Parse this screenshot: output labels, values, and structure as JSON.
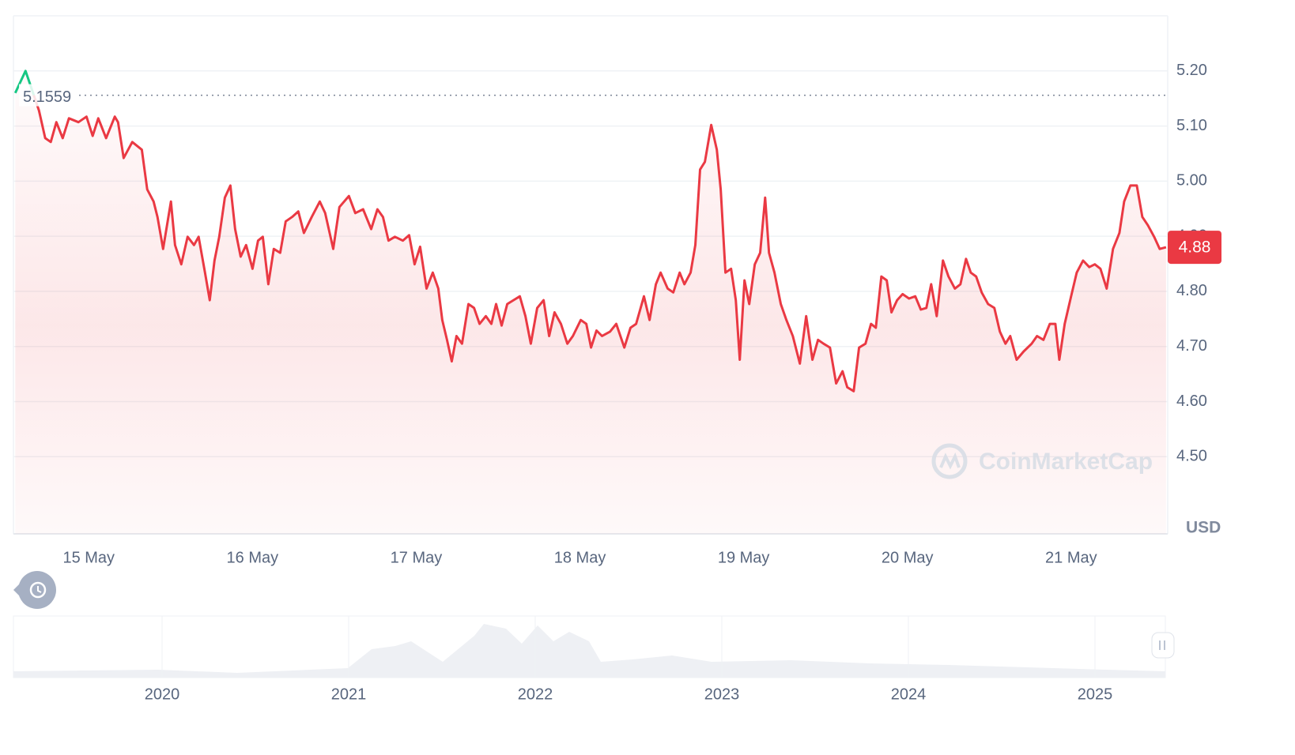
{
  "chart_data": {
    "type": "line",
    "color": "#ea3943",
    "color_above": "#16c784",
    "reference": 5.1559,
    "current_price": 4.88,
    "unit": "USD",
    "watermark": "CoinMarketCap",
    "grid": true,
    "xlim": [
      14.54,
      21.59
    ],
    "xticks": [
      {
        "value": 15,
        "label": "15 May"
      },
      {
        "value": 16,
        "label": "16 May"
      },
      {
        "value": 17,
        "label": "17 May"
      },
      {
        "value": 18,
        "label": "18 May"
      },
      {
        "value": 19,
        "label": "19 May"
      },
      {
        "value": 20,
        "label": "20 May"
      },
      {
        "value": 21,
        "label": "21 May"
      }
    ],
    "ylim": [
      4.36,
      5.3
    ],
    "yticks": [
      {
        "value": 4.5,
        "label": "4.50"
      },
      {
        "value": 4.6,
        "label": "4.60"
      },
      {
        "value": 4.7,
        "label": "4.70"
      },
      {
        "value": 4.8,
        "label": "4.80"
      },
      {
        "value": 4.9,
        "label": "4.90"
      },
      {
        "value": 5.0,
        "label": "5.00"
      },
      {
        "value": 5.1,
        "label": "5.10"
      },
      {
        "value": 5.2,
        "label": "5.20"
      }
    ],
    "x": [
      14.551,
      14.614,
      14.647,
      14.696,
      14.734,
      14.768,
      14.802,
      14.841,
      14.879,
      14.937,
      14.986,
      15.024,
      15.058,
      15.106,
      15.159,
      15.179,
      15.213,
      15.266,
      15.324,
      15.357,
      15.396,
      15.42,
      15.454,
      15.502,
      15.527,
      15.565,
      15.604,
      15.643,
      15.671,
      15.71,
      15.739,
      15.768,
      15.797,
      15.831,
      15.865,
      15.894,
      15.928,
      15.961,
      16.0,
      16.034,
      16.063,
      16.097,
      16.13,
      16.169,
      16.203,
      16.242,
      16.28,
      16.314,
      16.362,
      16.411,
      16.444,
      16.493,
      16.531,
      16.589,
      16.628,
      16.676,
      16.725,
      16.763,
      16.797,
      16.831,
      16.87,
      16.918,
      16.957,
      16.99,
      17.024,
      17.063,
      17.101,
      17.135,
      17.159,
      17.188,
      17.217,
      17.246,
      17.28,
      17.319,
      17.353,
      17.387,
      17.425,
      17.459,
      17.488,
      17.522,
      17.556,
      17.594,
      17.633,
      17.667,
      17.7,
      17.739,
      17.778,
      17.812,
      17.845,
      17.884,
      17.923,
      17.957,
      18.005,
      18.039,
      18.068,
      18.101,
      18.135,
      18.184,
      18.222,
      18.271,
      18.309,
      18.343,
      18.391,
      18.425,
      18.464,
      18.493,
      18.536,
      18.57,
      18.609,
      18.638,
      18.676,
      18.705,
      18.734,
      18.763,
      18.802,
      18.836,
      18.86,
      18.889,
      18.923,
      18.952,
      18.976,
      19.005,
      19.034,
      19.068,
      19.101,
      19.131,
      19.155,
      19.188,
      19.227,
      19.261,
      19.3,
      19.343,
      19.382,
      19.42,
      19.454,
      19.488,
      19.527,
      19.565,
      19.604,
      19.633,
      19.672,
      19.705,
      19.744,
      19.778,
      19.807,
      19.841,
      19.874,
      19.903,
      19.937,
      19.971,
      20.01,
      20.048,
      20.082,
      20.116,
      20.145,
      20.179,
      20.217,
      20.251,
      20.29,
      20.324,
      20.358,
      20.387,
      20.42,
      20.454,
      20.493,
      20.531,
      20.565,
      20.599,
      20.628,
      20.667,
      20.71,
      20.759,
      20.792,
      20.831,
      20.87,
      20.904,
      20.928,
      20.961,
      21.0,
      21.034,
      21.073,
      21.111,
      21.145,
      21.179,
      21.217,
      21.256,
      21.295,
      21.324,
      21.362,
      21.401,
      21.435,
      21.469,
      21.507,
      21.541,
      21.58
    ],
    "values": [
      5.16,
      5.2,
      5.171,
      5.128,
      5.078,
      5.071,
      5.107,
      5.078,
      5.114,
      5.107,
      5.117,
      5.082,
      5.114,
      5.078,
      5.117,
      5.107,
      5.042,
      5.071,
      5.057,
      4.985,
      4.963,
      4.935,
      4.877,
      4.963,
      4.884,
      4.849,
      4.899,
      4.884,
      4.899,
      4.834,
      4.784,
      4.856,
      4.899,
      4.97,
      4.992,
      4.913,
      4.863,
      4.884,
      4.841,
      4.892,
      4.899,
      4.813,
      4.877,
      4.87,
      4.927,
      4.935,
      4.945,
      4.906,
      4.935,
      4.963,
      4.942,
      4.877,
      4.953,
      4.973,
      4.942,
      4.949,
      4.913,
      4.949,
      4.935,
      4.892,
      4.899,
      4.892,
      4.902,
      4.849,
      4.881,
      4.805,
      4.834,
      4.805,
      4.748,
      4.712,
      4.673,
      4.719,
      4.705,
      4.777,
      4.77,
      4.741,
      4.755,
      4.741,
      4.777,
      4.738,
      4.777,
      4.784,
      4.791,
      4.755,
      4.705,
      4.77,
      4.784,
      4.719,
      4.762,
      4.741,
      4.705,
      4.719,
      4.748,
      4.741,
      4.698,
      4.729,
      4.719,
      4.727,
      4.741,
      4.698,
      4.734,
      4.741,
      4.791,
      4.748,
      4.813,
      4.834,
      4.805,
      4.798,
      4.834,
      4.813,
      4.834,
      4.884,
      5.021,
      5.035,
      5.102,
      5.057,
      4.985,
      4.834,
      4.841,
      4.784,
      4.676,
      4.82,
      4.777,
      4.849,
      4.87,
      4.97,
      4.87,
      4.834,
      4.777,
      4.748,
      4.719,
      4.669,
      4.755,
      4.676,
      4.712,
      4.705,
      4.698,
      4.633,
      4.655,
      4.626,
      4.619,
      4.698,
      4.705,
      4.741,
      4.734,
      4.827,
      4.82,
      4.762,
      4.784,
      4.795,
      4.787,
      4.791,
      4.767,
      4.77,
      4.813,
      4.755,
      4.856,
      4.827,
      4.805,
      4.813,
      4.859,
      4.834,
      4.827,
      4.798,
      4.777,
      4.77,
      4.727,
      4.705,
      4.719,
      4.676,
      4.691,
      4.705,
      4.719,
      4.712,
      4.741,
      4.741,
      4.676,
      4.741,
      4.791,
      4.834,
      4.856,
      4.844,
      4.849,
      4.841,
      4.805,
      4.877,
      4.906,
      4.963,
      4.992,
      4.992,
      4.935,
      4.92,
      4.899,
      4.877,
      4.88
    ],
    "navigator_labels": [
      "2020",
      "2021",
      "2022",
      "2023",
      "2024",
      "2025"
    ]
  }
}
